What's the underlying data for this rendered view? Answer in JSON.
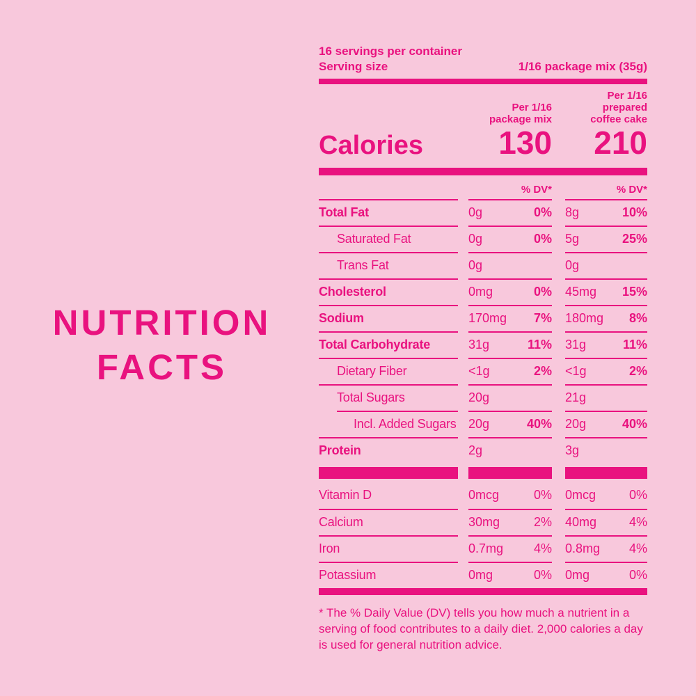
{
  "colors": {
    "accent": "#e9127f",
    "background": "#f8c8dc"
  },
  "side_title": {
    "line1": "NUTRITION",
    "line2": "FACTS"
  },
  "label": {
    "servings_line": "16 servings per container",
    "serving_size_label": "Serving size",
    "serving_size_value": "1/16 package mix (35g)",
    "col1_header_line1": "Per 1/16",
    "col1_header_line2": "package mix",
    "col2_header_line1": "Per 1/16 prepared",
    "col2_header_line2": "coffee cake",
    "calories_label": "Calories",
    "calories_mix": "130",
    "calories_prepared": "210",
    "dv_header": "% DV*",
    "rows": [
      {
        "label": "Total Fat",
        "a1": "0g",
        "p1": "0%",
        "a2": "8g",
        "p2": "10%"
      },
      {
        "label": "Saturated Fat",
        "a1": "0g",
        "p1": "0%",
        "a2": "5g",
        "p2": "25%"
      },
      {
        "label": "Trans Fat",
        "a1": "0g",
        "p1": "",
        "a2": "0g",
        "p2": ""
      },
      {
        "label": "Cholesterol",
        "a1": "0mg",
        "p1": "0%",
        "a2": "45mg",
        "p2": "15%"
      },
      {
        "label": "Sodium",
        "a1": "170mg",
        "p1": "7%",
        "a2": "180mg",
        "p2": "8%"
      },
      {
        "label": "Total Carbohydrate",
        "a1": "31g",
        "p1": "11%",
        "a2": "31g",
        "p2": "11%"
      },
      {
        "label": "Dietary Fiber",
        "a1": "<1g",
        "p1": "2%",
        "a2": "<1g",
        "p2": "2%"
      },
      {
        "label": "Total Sugars",
        "a1": "20g",
        "p1": "",
        "a2": "21g",
        "p2": ""
      },
      {
        "label": "Incl. Added Sugars",
        "a1": "20g",
        "p1": "40%",
        "a2": "20g",
        "p2": "40%"
      },
      {
        "label": "Protein",
        "a1": "2g",
        "p1": "",
        "a2": "3g",
        "p2": ""
      }
    ],
    "vitamin_rows": [
      {
        "label": "Vitamin D",
        "a1": "0mcg",
        "p1": "0%",
        "a2": "0mcg",
        "p2": "0%"
      },
      {
        "label": "Calcium",
        "a1": "30mg",
        "p1": "2%",
        "a2": "40mg",
        "p2": "4%"
      },
      {
        "label": "Iron",
        "a1": "0.7mg",
        "p1": "4%",
        "a2": "0.8mg",
        "p2": "4%"
      },
      {
        "label": "Potassium",
        "a1": "0mg",
        "p1": "0%",
        "a2": "0mg",
        "p2": "0%"
      }
    ],
    "footnote": "* The % Daily Value (DV) tells you how much a nutrient in a serving of food contributes to a daily diet. 2,000 calories a day is used for general nutrition advice."
  }
}
